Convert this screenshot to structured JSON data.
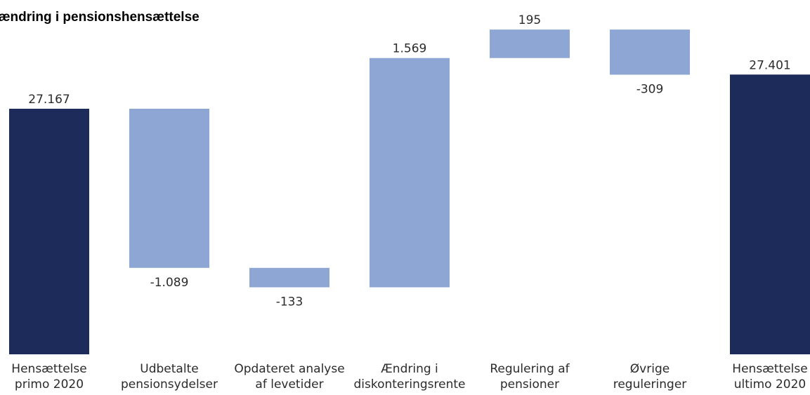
{
  "chart_data": {
    "type": "bar",
    "subtype": "waterfall",
    "title": "f ændring i pensionshensættelse",
    "categories": [
      [
        "Hensættelse",
        "primo 2020"
      ],
      [
        "Udbetalte",
        "pensionsydelser"
      ],
      [
        "Opdateret analyse",
        "af levetider"
      ],
      [
        "Ændring i",
        "diskonteringsrente"
      ],
      [
        "Regulering af",
        "pensioner"
      ],
      [
        "Øvrige",
        "reguleringer"
      ],
      [
        "Hensættelse",
        "ultimo 2020"
      ]
    ],
    "values": [
      27167,
      -1089,
      -133,
      1569,
      195,
      -309,
      27401
    ],
    "bar_kinds": [
      "total",
      "delta",
      "delta",
      "delta",
      "delta",
      "delta",
      "total"
    ],
    "value_labels": [
      "27.167",
      "-1.089",
      "-133",
      "1.569",
      "195",
      "-309",
      "27.401"
    ],
    "colors": {
      "total": "#1c2b59",
      "delta": "#8da6d4"
    },
    "grid": false,
    "legend": "none"
  }
}
